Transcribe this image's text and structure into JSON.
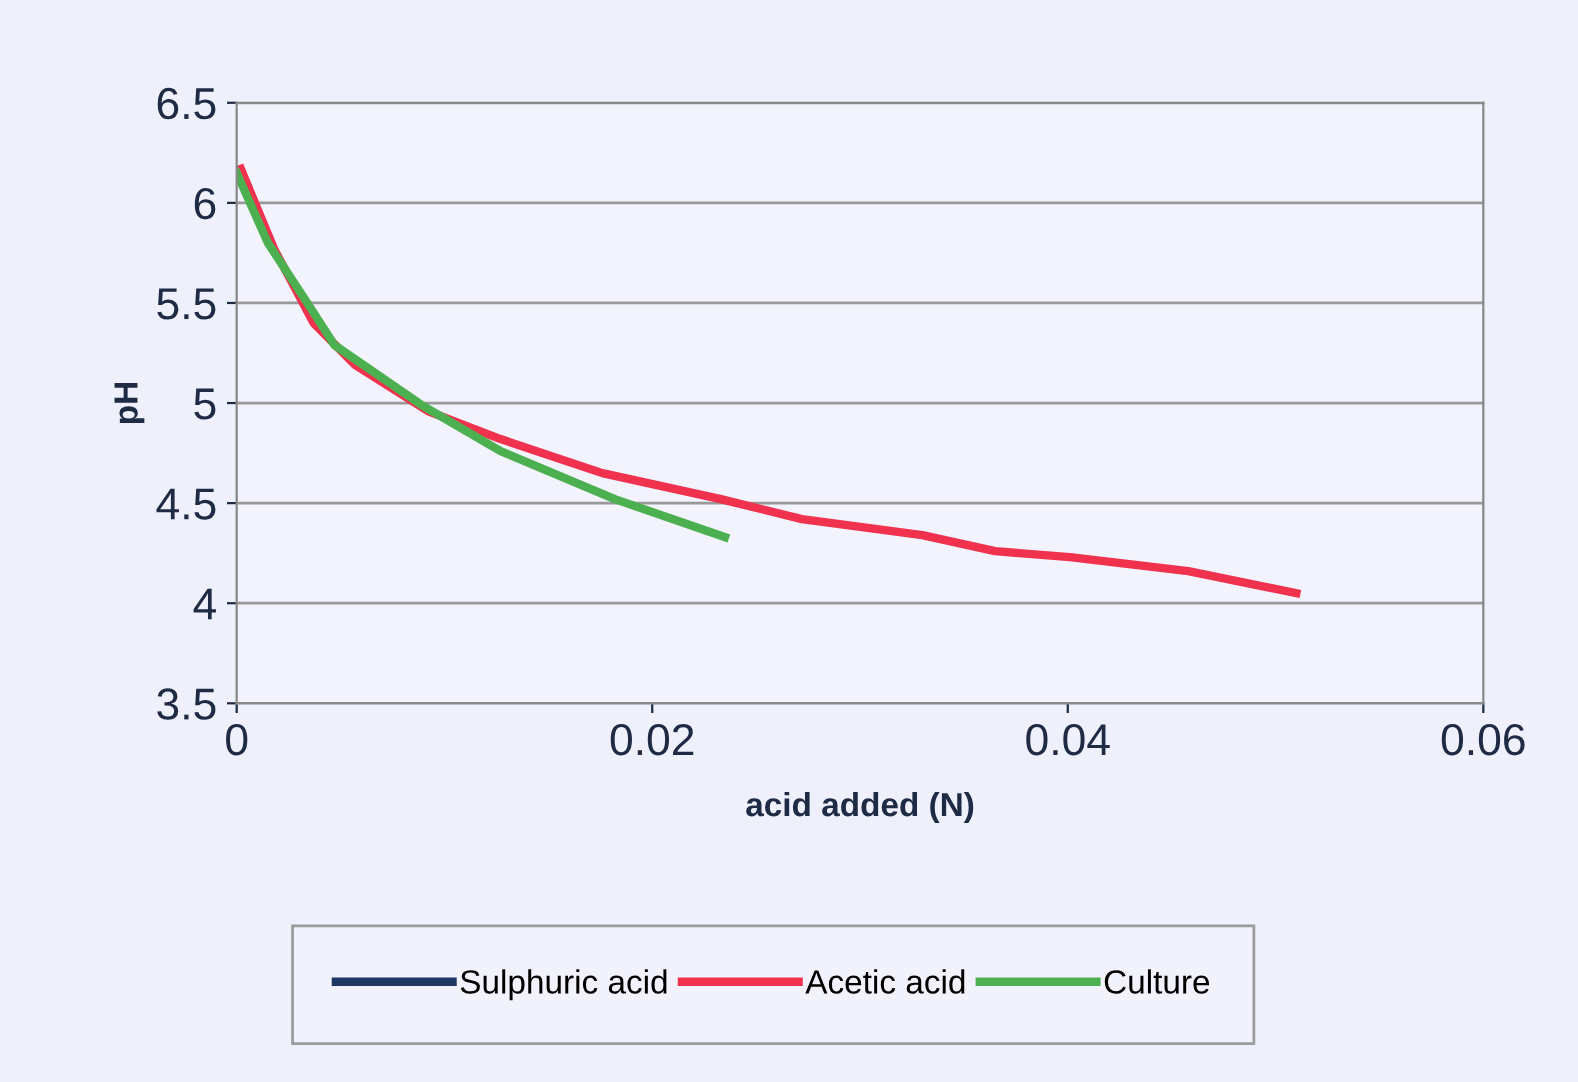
{
  "chart_data": {
    "type": "line",
    "xlabel": "acid added (N)",
    "ylabel": "pH",
    "xlim": [
      0,
      0.06
    ],
    "xticks": [
      0,
      0.02,
      0.04,
      0.06
    ],
    "ylim": [
      3.5,
      6.5
    ],
    "yticks": [
      3.5,
      4,
      4.5,
      5,
      5.5,
      6,
      6.5
    ],
    "grid": "y",
    "legend": "bottom",
    "marker": "none",
    "line_style": "solid",
    "series": [
      {
        "name": "Sulphuric acid",
        "color": "#1f3864"
      },
      {
        "name": "Acetic acid",
        "color": "#f0324f",
        "x": [
          0.0002,
          0.0018,
          0.0037,
          0.0057,
          0.0092,
          0.0127,
          0.0176,
          0.0233,
          0.0272,
          0.033,
          0.0365,
          0.0401,
          0.0458,
          0.051
        ],
        "values": [
          6.17,
          5.77,
          5.4,
          5.19,
          4.96,
          4.82,
          4.65,
          4.52,
          4.42,
          4.34,
          4.26,
          4.23,
          4.16,
          4.05
        ]
      },
      {
        "name": "Culture",
        "color": "#4caf50",
        "x": [
          0,
          0.0015,
          0.0034,
          0.0047,
          0.0089,
          0.0127,
          0.0182,
          0.0235
        ],
        "values": [
          6.15,
          5.8,
          5.5,
          5.29,
          4.99,
          4.76,
          4.52,
          4.33
        ]
      }
    ]
  }
}
